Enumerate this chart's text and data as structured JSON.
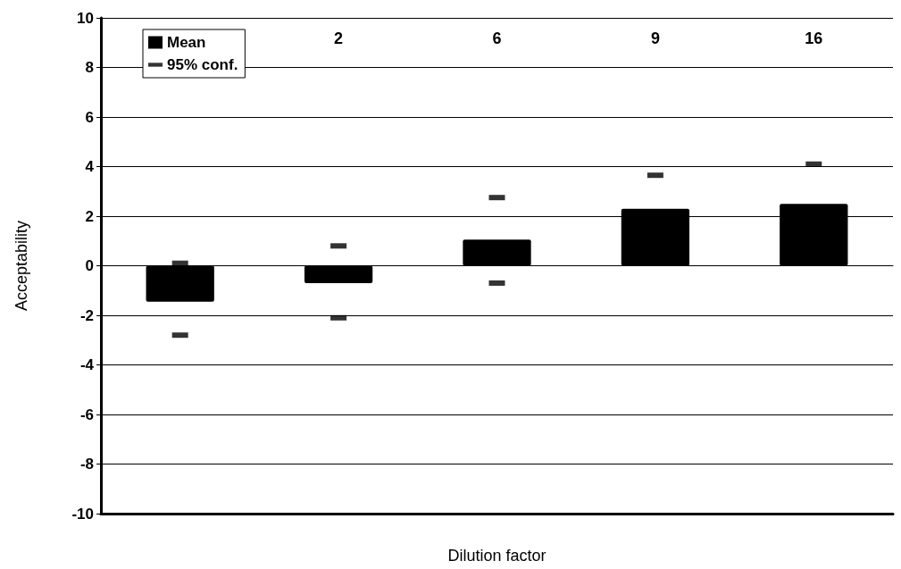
{
  "chart_data": {
    "type": "bar",
    "xlabel": "Dilution factor",
    "ylabel": "Acceptability",
    "categories": [
      null,
      "2",
      "6",
      "9",
      "16"
    ],
    "series": [
      {
        "name": "Mean",
        "color": "#000000",
        "values": [
          -1.45,
          -0.7,
          1.05,
          2.3,
          2.5
        ]
      },
      {
        "name": "95% conf.",
        "type": "scatter",
        "color": "#000000",
        "values": [
          0.1,
          0.8,
          2.75,
          3.65,
          4.1
        ]
      },
      {
        "type": "scatter",
        "color": "#000000",
        "values": [
          -2.8,
          -2.1,
          -0.7,
          null,
          null
        ]
      }
    ],
    "ylim": [
      -10,
      10
    ],
    "yticks": [
      -10,
      -8,
      -6,
      -4,
      -2,
      0,
      2,
      4,
      6,
      8,
      10
    ],
    "grid": "y",
    "legend": "top left"
  }
}
